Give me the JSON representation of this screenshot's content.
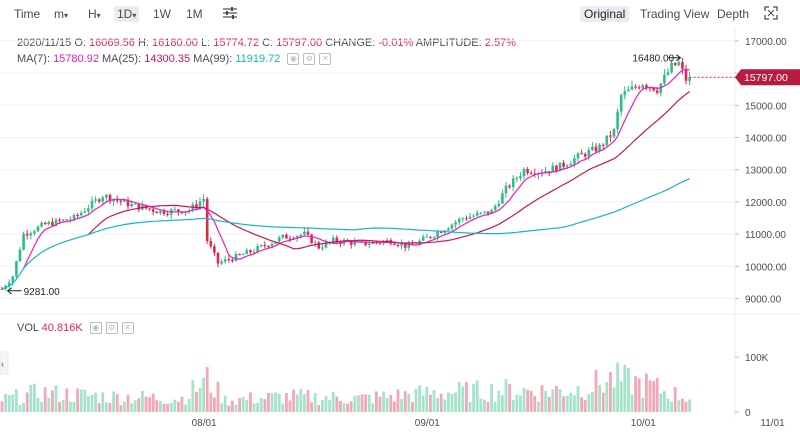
{
  "toolbar": {
    "time": "Time",
    "minute": "m",
    "hour": "H",
    "interval_selected": "1D",
    "week": "1W",
    "month": "1M",
    "views": [
      "Original",
      "Trading View",
      "Depth"
    ],
    "active_view": "Original"
  },
  "ohlc": {
    "date": "2020/11/15",
    "open_label": "O:",
    "open": "16069.56",
    "high_label": "H:",
    "high": "16180.00",
    "low_label": "L:",
    "low": "15774.72",
    "close_label": "C:",
    "close": "15797.00",
    "change_label": "CHANGE:",
    "change": "-0.01%",
    "amplitude_label": "AMPLITUDE:",
    "amplitude": "2.57%"
  },
  "ma": {
    "ma7_label": "MA(7):",
    "ma7": "15780.92",
    "ma25_label": "MA(25):",
    "ma25": "14300.35",
    "ma99_label": "MA(99):",
    "ma99": "11919.72"
  },
  "vol": {
    "label": "VOL",
    "value": "40.816K"
  },
  "colors": {
    "up": "#2ebd85",
    "down": "#e0294a",
    "ma7": "#e91ec6",
    "ma25": "#c2185b",
    "ma99": "#14b8c4"
  },
  "chart_data": {
    "type": "candlestick",
    "price_axis": {
      "ticks": [
        9000,
        10000,
        11000,
        12000,
        13000,
        14000,
        15000,
        16000,
        17000
      ],
      "tick_labels": [
        "9000.00",
        "10000.00",
        "11000.00",
        "12000.00",
        "13000.00",
        "14000.00",
        "15000.00",
        "16000.00",
        "17000.00"
      ],
      "range": [
        8800,
        17400
      ]
    },
    "volume_axis": {
      "ticks": [
        0,
        100000
      ],
      "tick_labels": [
        "0",
        "100K"
      ],
      "range": [
        0,
        135000
      ]
    },
    "x_labels": [
      "08/01",
      "09/01",
      "10/01",
      "11/01"
    ],
    "current_price_label": "15797.00",
    "high_annotation": "16480.00",
    "low_annotation": "9281.00",
    "keypoints": [
      [
        0,
        9300
      ],
      [
        3,
        9700
      ],
      [
        6,
        11000
      ],
      [
        12,
        11300
      ],
      [
        20,
        11500
      ],
      [
        28,
        12200
      ],
      [
        36,
        11900
      ],
      [
        44,
        11700
      ],
      [
        52,
        11750
      ],
      [
        56,
        12100
      ],
      [
        57,
        10800
      ],
      [
        60,
        10100
      ],
      [
        64,
        10250
      ],
      [
        70,
        10500
      ],
      [
        78,
        10900
      ],
      [
        84,
        11000
      ],
      [
        88,
        10600
      ],
      [
        92,
        10800
      ],
      [
        100,
        10700
      ],
      [
        108,
        10800
      ],
      [
        113,
        10600
      ],
      [
        120,
        11000
      ],
      [
        128,
        11500
      ],
      [
        136,
        11700
      ],
      [
        140,
        12400
      ],
      [
        145,
        13000
      ],
      [
        150,
        12950
      ],
      [
        155,
        13100
      ],
      [
        160,
        13400
      ],
      [
        166,
        13700
      ],
      [
        170,
        14200
      ],
      [
        172,
        15300
      ],
      [
        178,
        15700
      ],
      [
        182,
        15500
      ],
      [
        186,
        16200
      ],
      [
        188,
        16300
      ],
      [
        190,
        15800
      ]
    ],
    "volume_keypoints": [
      [
        0,
        22000
      ],
      [
        10,
        35000
      ],
      [
        30,
        28000
      ],
      [
        50,
        25000
      ],
      [
        57,
        58000
      ],
      [
        62,
        22000
      ],
      [
        80,
        28000
      ],
      [
        100,
        25000
      ],
      [
        120,
        35000
      ],
      [
        140,
        40000
      ],
      [
        150,
        38000
      ],
      [
        160,
        42000
      ],
      [
        170,
        60000
      ],
      [
        180,
        48000
      ],
      [
        185,
        35000
      ],
      [
        190,
        28000
      ]
    ]
  }
}
